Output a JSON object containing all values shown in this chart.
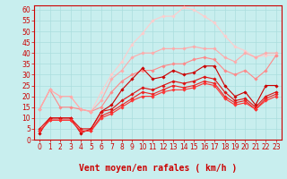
{
  "xlabel": "Vent moyen/en rafales ( km/h )",
  "ylabel": "",
  "xlim": [
    -0.5,
    23.5
  ],
  "ylim": [
    0,
    62
  ],
  "yticks": [
    0,
    5,
    10,
    15,
    20,
    25,
    30,
    35,
    40,
    45,
    50,
    55,
    60
  ],
  "xticks": [
    0,
    1,
    2,
    3,
    4,
    5,
    6,
    7,
    8,
    9,
    10,
    11,
    12,
    13,
    14,
    15,
    16,
    17,
    18,
    19,
    20,
    21,
    22,
    23
  ],
  "bg_color": "#c8eeee",
  "grid_color": "#aadddd",
  "series": [
    {
      "x": [
        0,
        1,
        2,
        3,
        4,
        5,
        6,
        7,
        8,
        9,
        10,
        11,
        12,
        13,
        14,
        15,
        16,
        17,
        18,
        19,
        20,
        21,
        22,
        23
      ],
      "y": [
        3,
        10,
        10,
        10,
        3,
        5,
        13,
        16,
        23,
        28,
        33,
        28,
        29,
        32,
        30,
        31,
        34,
        34,
        25,
        20,
        22,
        16,
        25,
        25
      ],
      "color": "#cc0000",
      "marker": "D",
      "markersize": 1.8,
      "linewidth": 0.8,
      "alpha": 1.0,
      "zorder": 5
    },
    {
      "x": [
        0,
        1,
        2,
        3,
        4,
        5,
        6,
        7,
        8,
        9,
        10,
        11,
        12,
        13,
        14,
        15,
        16,
        17,
        18,
        19,
        20,
        21,
        22,
        23
      ],
      "y": [
        5,
        10,
        10,
        10,
        5,
        5,
        13,
        14,
        18,
        21,
        24,
        23,
        25,
        27,
        26,
        27,
        29,
        28,
        22,
        18,
        19,
        15,
        20,
        22
      ],
      "color": "#dd1111",
      "marker": "D",
      "markersize": 1.8,
      "linewidth": 0.8,
      "alpha": 1.0,
      "zorder": 5
    },
    {
      "x": [
        0,
        1,
        2,
        3,
        4,
        5,
        6,
        7,
        8,
        9,
        10,
        11,
        12,
        13,
        14,
        15,
        16,
        17,
        18,
        19,
        20,
        21,
        22,
        23
      ],
      "y": [
        4,
        9,
        9,
        9,
        4,
        4,
        11,
        13,
        16,
        19,
        22,
        21,
        23,
        25,
        24,
        25,
        27,
        26,
        20,
        17,
        18,
        14,
        19,
        21
      ],
      "color": "#ee2222",
      "marker": "D",
      "markersize": 1.8,
      "linewidth": 0.8,
      "alpha": 1.0,
      "zorder": 5
    },
    {
      "x": [
        0,
        1,
        2,
        3,
        4,
        5,
        6,
        7,
        8,
        9,
        10,
        11,
        12,
        13,
        14,
        15,
        16,
        17,
        18,
        19,
        20,
        21,
        22,
        23
      ],
      "y": [
        4,
        9,
        9,
        9,
        4,
        4,
        10,
        12,
        15,
        18,
        20,
        20,
        22,
        23,
        23,
        24,
        26,
        25,
        19,
        16,
        17,
        14,
        18,
        20
      ],
      "color": "#ff3333",
      "marker": "D",
      "markersize": 1.8,
      "linewidth": 0.8,
      "alpha": 1.0,
      "zorder": 5
    },
    {
      "x": [
        0,
        1,
        2,
        3,
        4,
        5,
        6,
        7,
        8,
        9,
        10,
        11,
        12,
        13,
        14,
        15,
        16,
        17,
        18,
        19,
        20,
        21,
        22,
        23
      ],
      "y": [
        14,
        23,
        15,
        15,
        14,
        13,
        15,
        22,
        27,
        30,
        32,
        32,
        34,
        35,
        35,
        37,
        38,
        37,
        32,
        30,
        32,
        28,
        32,
        39
      ],
      "color": "#ff8888",
      "marker": "D",
      "markersize": 1.8,
      "linewidth": 0.8,
      "alpha": 1.0,
      "zorder": 4
    },
    {
      "x": [
        0,
        1,
        2,
        3,
        4,
        5,
        6,
        7,
        8,
        9,
        10,
        11,
        12,
        13,
        14,
        15,
        16,
        17,
        18,
        19,
        20,
        21,
        22,
        23
      ],
      "y": [
        14,
        23,
        20,
        20,
        14,
        13,
        18,
        28,
        32,
        38,
        40,
        40,
        42,
        42,
        42,
        43,
        42,
        42,
        38,
        36,
        40,
        38,
        40,
        40
      ],
      "color": "#ffaaaa",
      "marker": "D",
      "markersize": 1.8,
      "linewidth": 0.8,
      "alpha": 1.0,
      "zorder": 4
    },
    {
      "x": [
        0,
        1,
        2,
        3,
        4,
        5,
        6,
        7,
        8,
        9,
        10,
        11,
        12,
        13,
        14,
        15,
        16,
        17,
        18,
        19,
        20,
        21,
        22,
        23
      ],
      "y": [
        14,
        23,
        20,
        20,
        14,
        13,
        22,
        30,
        36,
        44,
        49,
        55,
        57,
        57,
        61,
        60,
        57,
        54,
        48,
        43,
        41,
        38,
        39,
        39
      ],
      "color": "#ffcccc",
      "marker": "D",
      "markersize": 1.8,
      "linewidth": 0.8,
      "alpha": 1.0,
      "zorder": 3
    }
  ],
  "text_color": "#cc0000",
  "axis_color": "#cc0000",
  "tick_fontsize": 5.5,
  "label_fontsize": 7
}
